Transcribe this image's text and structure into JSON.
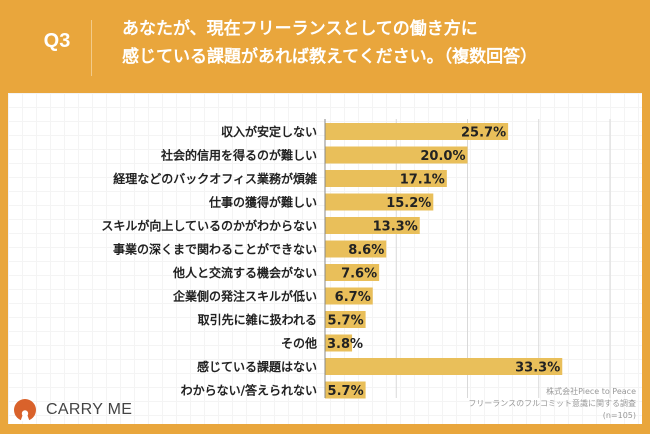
{
  "header": {
    "question_number": "Q3",
    "title_line1": "あなたが、現在フリーランスとしての働き方に",
    "title_line2": "感じている課題があれば教えてください。（複数回答）"
  },
  "brand": {
    "logo_text": "CARRY ME",
    "logo_icon": "carry-me-logo-icon"
  },
  "source": {
    "line1": "株式会社Piece to Peace",
    "line2": "フリーランスのフルコミット意識に関する調査",
    "line3": "(n=105)"
  },
  "colors": {
    "frame": "#E9A63C",
    "bar": "#E9BF5A",
    "text": "#222222"
  },
  "chart_data": {
    "type": "bar",
    "orientation": "horizontal",
    "categories": [
      "収入が安定しない",
      "社会的信用を得るのが難しい",
      "経理などのバックオフィス業務が煩雑",
      "仕事の獲得が難しい",
      "スキルが向上しているのかがわからない",
      "事業の深くまで関わることができない",
      "他人と交流する機会がない",
      "企業側の発注スキルが低い",
      "取引先に雑に扱われる",
      "その他",
      "感じている課題はない",
      "わからない/答えられない"
    ],
    "values": [
      25.7,
      20.0,
      17.1,
      15.2,
      13.3,
      8.6,
      7.6,
      6.7,
      5.7,
      3.8,
      33.3,
      5.7
    ],
    "labels": [
      "25.7%",
      "20.0%",
      "17.1%",
      "15.2%",
      "13.3%",
      "8.6%",
      "7.6%",
      "6.7%",
      "5.7%",
      "3.8%",
      "33.3%",
      "5.7%"
    ],
    "unit": "%",
    "xlim": [
      0,
      40
    ],
    "gridlines": [
      10,
      20,
      30,
      40
    ],
    "grid": true,
    "legend": "none"
  }
}
